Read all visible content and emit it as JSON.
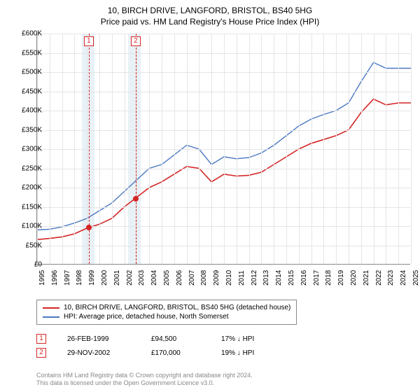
{
  "title": "10, BIRCH DRIVE, LANGFORD, BRISTOL, BS40 5HG",
  "subtitle": "Price paid vs. HM Land Registry's House Price Index (HPI)",
  "chart": {
    "type": "line",
    "ylim": [
      0,
      600000
    ],
    "ytick_step": 50000,
    "y_prefix": "£",
    "y_suffix_k": "K",
    "xlim": [
      1995,
      2025
    ],
    "xtick_step": 1,
    "background_color": "#ffffff",
    "grid_color": "#e5e5e5",
    "axis_color": "#888888",
    "label_fontsize": 10,
    "highlight_bands": [
      {
        "x_start": 1998.6,
        "x_end": 1999.6,
        "color": "#d8e8f0"
      },
      {
        "x_start": 2002.3,
        "x_end": 2003.3,
        "color": "#d8e8f0"
      }
    ],
    "marker_lines": [
      {
        "id": "1",
        "x": 1999.15,
        "color": "#d42626"
      },
      {
        "id": "2",
        "x": 2002.91,
        "color": "#d42626"
      }
    ],
    "marker_boxes": [
      {
        "id": "1",
        "x": 1999.15,
        "color": "#d42626",
        "label": "1"
      },
      {
        "id": "2",
        "x": 2002.91,
        "color": "#d42626",
        "label": "2"
      }
    ],
    "data_points": [
      {
        "x": 1999.15,
        "y": 94500,
        "color": "#d42626"
      },
      {
        "x": 2002.91,
        "y": 170000,
        "color": "#d42626"
      }
    ],
    "series": [
      {
        "name": "price_paid",
        "color": "#d42626",
        "line_width": 1.6,
        "label": "10, BIRCH DRIVE, LANGFORD, BRISTOL, BS40 5HG (detached house)",
        "x": [
          1995,
          1996,
          1997,
          1998,
          1999,
          2000,
          2001,
          2002,
          2003,
          2004,
          2005,
          2006,
          2007,
          2008,
          2009,
          2010,
          2011,
          2012,
          2013,
          2014,
          2015,
          2016,
          2017,
          2018,
          2019,
          2020,
          2021,
          2022,
          2023,
          2024,
          2025
        ],
        "y": [
          65000,
          68000,
          72000,
          80000,
          94500,
          105000,
          120000,
          150000,
          175000,
          200000,
          215000,
          235000,
          255000,
          250000,
          215000,
          235000,
          230000,
          232000,
          240000,
          260000,
          280000,
          300000,
          315000,
          325000,
          335000,
          350000,
          395000,
          430000,
          415000,
          420000,
          420000
        ]
      },
      {
        "name": "hpi",
        "color": "#4a78c2",
        "line_width": 1.4,
        "label": "HPI: Average price, detached house, North Somerset",
        "x": [
          1995,
          1996,
          1997,
          1998,
          1999,
          2000,
          2001,
          2002,
          2003,
          2004,
          2005,
          2006,
          2007,
          2008,
          2009,
          2010,
          2011,
          2012,
          2013,
          2014,
          2015,
          2016,
          2017,
          2018,
          2019,
          2020,
          2021,
          2022,
          2023,
          2024,
          2025
        ],
        "y": [
          90000,
          92000,
          98000,
          108000,
          120000,
          140000,
          160000,
          190000,
          220000,
          250000,
          260000,
          285000,
          310000,
          300000,
          260000,
          280000,
          275000,
          278000,
          290000,
          310000,
          335000,
          360000,
          378000,
          390000,
          400000,
          420000,
          475000,
          525000,
          510000,
          510000,
          510000
        ]
      }
    ]
  },
  "legend": {
    "border_color": "#888888",
    "items": [
      {
        "color": "#d42626",
        "label": "10, BIRCH DRIVE, LANGFORD, BRISTOL, BS40 5HG (detached house)"
      },
      {
        "color": "#4a78c2",
        "label": "HPI: Average price, detached house, North Somerset"
      }
    ]
  },
  "annotations": [
    {
      "marker": "1",
      "marker_color": "#d42626",
      "date": "26-FEB-1999",
      "price": "£94,500",
      "delta": "17% ↓ HPI"
    },
    {
      "marker": "2",
      "marker_color": "#d42626",
      "date": "29-NOV-2002",
      "price": "£170,000",
      "delta": "19% ↓ HPI"
    }
  ],
  "footer": {
    "line1": "Contains HM Land Registry data © Crown copyright and database right 2024.",
    "line2": "This data is licensed under the Open Government Licence v3.0."
  }
}
